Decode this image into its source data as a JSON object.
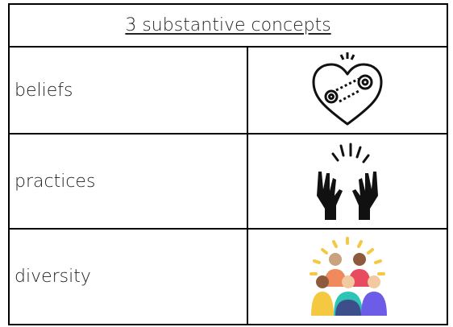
{
  "table": {
    "header": "3 substantive concepts",
    "rows": [
      [
        "beliefs"
      ],
      [
        "practices"
      ],
      [
        "diversity"
      ]
    ]
  }
}
